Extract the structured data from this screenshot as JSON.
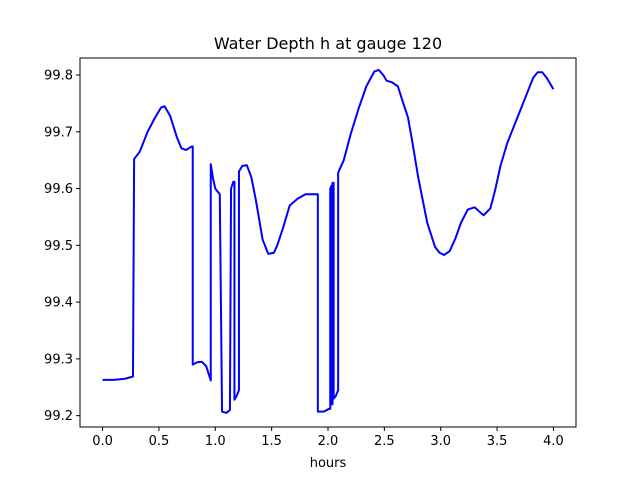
{
  "chart_data": {
    "type": "line",
    "title": "Water Depth h at gauge 120",
    "xlabel": "hours",
    "ylabel": "",
    "xlim": [
      -0.2,
      4.2
    ],
    "ylim": [
      99.18,
      99.83
    ],
    "xticks": [
      0.0,
      0.5,
      1.0,
      1.5,
      2.0,
      2.5,
      3.0,
      3.5,
      4.0
    ],
    "xtick_labels": [
      "0.0",
      "0.5",
      "1.0",
      "1.5",
      "2.0",
      "2.5",
      "3.0",
      "3.5",
      "4.0"
    ],
    "yticks": [
      99.2,
      99.3,
      99.4,
      99.5,
      99.6,
      99.7,
      99.8
    ],
    "ytick_labels": [
      "99.2",
      "99.3",
      "99.4",
      "99.5",
      "99.6",
      "99.7",
      "99.8"
    ],
    "grid": false,
    "series": [
      {
        "color": "#0000ff",
        "x": [
          0.0,
          0.1,
          0.2,
          0.27,
          0.28,
          0.28,
          0.33,
          0.4,
          0.46,
          0.52,
          0.55,
          0.6,
          0.66,
          0.7,
          0.74,
          0.79,
          0.8,
          0.8,
          0.84,
          0.88,
          0.92,
          0.96,
          0.96,
          0.98,
          1.0,
          1.04,
          1.06,
          1.06,
          1.1,
          1.13,
          1.14,
          1.14,
          1.16,
          1.17,
          1.17,
          1.19,
          1.21,
          1.21,
          1.24,
          1.28,
          1.32,
          1.36,
          1.42,
          1.47,
          1.52,
          1.55,
          1.6,
          1.66,
          1.73,
          1.8,
          1.86,
          1.91,
          1.91,
          1.96,
          2.01,
          2.02,
          2.02,
          2.03,
          2.03,
          2.04,
          2.04,
          2.05,
          2.05,
          2.07,
          2.09,
          2.09,
          2.14,
          2.2,
          2.27,
          2.34,
          2.41,
          2.45,
          2.49,
          2.52,
          2.57,
          2.62,
          2.66,
          2.71,
          2.75,
          2.8,
          2.88,
          2.95,
          2.99,
          3.03,
          3.08,
          3.13,
          3.18,
          3.24,
          3.3,
          3.34,
          3.38,
          3.44,
          3.48,
          3.53,
          3.59,
          3.65,
          3.71,
          3.77,
          3.82,
          3.86,
          3.9,
          3.94,
          3.97,
          4.0
        ],
        "y": [
          99.263,
          99.263,
          99.265,
          99.269,
          99.652,
          99.652,
          99.665,
          99.7,
          99.723,
          99.743,
          99.745,
          99.728,
          99.69,
          99.671,
          99.668,
          99.674,
          99.674,
          99.29,
          99.294,
          99.295,
          99.287,
          99.262,
          99.643,
          99.618,
          99.6,
          99.59,
          99.207,
          99.207,
          99.205,
          99.21,
          99.6,
          99.6,
          99.612,
          99.612,
          99.228,
          99.235,
          99.245,
          99.63,
          99.64,
          99.641,
          99.62,
          99.58,
          99.51,
          99.485,
          99.487,
          99.5,
          99.53,
          99.57,
          99.582,
          99.59,
          99.59,
          99.59,
          99.207,
          99.207,
          99.212,
          99.212,
          99.6,
          99.605,
          99.22,
          99.22,
          99.61,
          99.61,
          99.23,
          99.235,
          99.245,
          99.628,
          99.65,
          99.695,
          99.74,
          99.78,
          99.806,
          99.809,
          99.8,
          99.79,
          99.787,
          99.78,
          99.755,
          99.725,
          99.68,
          99.62,
          99.54,
          99.497,
          99.487,
          99.483,
          99.49,
          99.512,
          99.54,
          99.563,
          99.567,
          99.56,
          99.553,
          99.565,
          99.595,
          99.64,
          99.68,
          99.71,
          99.74,
          99.77,
          99.795,
          99.805,
          99.805,
          99.795,
          99.785,
          99.775
        ]
      }
    ]
  }
}
